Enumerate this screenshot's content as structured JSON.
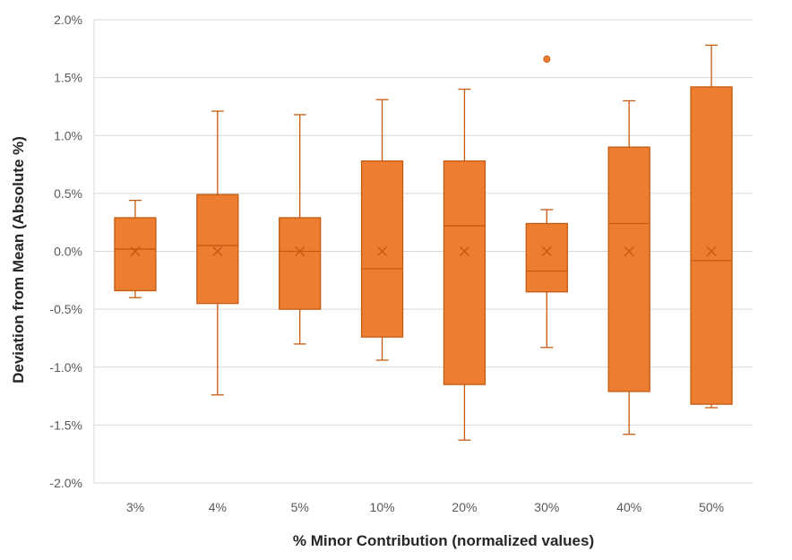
{
  "chart_data": {
    "type": "box",
    "title": "",
    "xlabel": "% Minor Contribution (normalized values)",
    "ylabel": "Deviation from Mean (Absolute %)",
    "ylim": [
      -2.0,
      2.0
    ],
    "ytick_values": [
      -2.0,
      -1.5,
      -1.0,
      -0.5,
      0.0,
      0.5,
      1.0,
      1.5,
      2.0
    ],
    "ytick_labels": [
      "-2.0%",
      "-1.5%",
      "-1.0%",
      "-0.5%",
      "0.0%",
      "0.5%",
      "1.0%",
      "1.5%",
      "2.0%"
    ],
    "categories": [
      "3%",
      "4%",
      "5%",
      "10%",
      "20%",
      "30%",
      "40%",
      "50%"
    ],
    "grid": true,
    "legend": "none",
    "box_color": "#ED7D31",
    "box_edge_color": "#C55A11",
    "grid_color": "#D9D9D9",
    "series": [
      {
        "values": [
          {
            "category": "3%",
            "min": -0.4,
            "q1": -0.34,
            "median": 0.02,
            "q3": 0.29,
            "max": 0.44,
            "mean": 0.0,
            "outliers": []
          },
          {
            "category": "4%",
            "min": -1.24,
            "q1": -0.45,
            "median": 0.05,
            "q3": 0.49,
            "max": 1.21,
            "mean": 0.0,
            "outliers": []
          },
          {
            "category": "5%",
            "min": -0.8,
            "q1": -0.5,
            "median": 0.0,
            "q3": 0.29,
            "max": 1.18,
            "mean": 0.0,
            "outliers": []
          },
          {
            "category": "10%",
            "min": -0.94,
            "q1": -0.74,
            "median": -0.15,
            "q3": 0.78,
            "max": 1.31,
            "mean": 0.0,
            "outliers": []
          },
          {
            "category": "20%",
            "min": -1.63,
            "q1": -1.15,
            "median": 0.22,
            "q3": 0.78,
            "max": 1.4,
            "mean": 0.0,
            "outliers": []
          },
          {
            "category": "30%",
            "min": -0.83,
            "q1": -0.35,
            "median": -0.17,
            "q3": 0.24,
            "max": 0.36,
            "mean": 0.0,
            "outliers": [
              1.66
            ]
          },
          {
            "category": "40%",
            "min": -1.58,
            "q1": -1.21,
            "median": 0.24,
            "q3": 0.9,
            "max": 1.3,
            "mean": 0.0,
            "outliers": []
          },
          {
            "category": "50%",
            "min": -1.35,
            "q1": -1.32,
            "median": -0.08,
            "q3": 1.42,
            "max": 1.78,
            "mean": 0.0,
            "outliers": []
          }
        ]
      }
    ]
  }
}
